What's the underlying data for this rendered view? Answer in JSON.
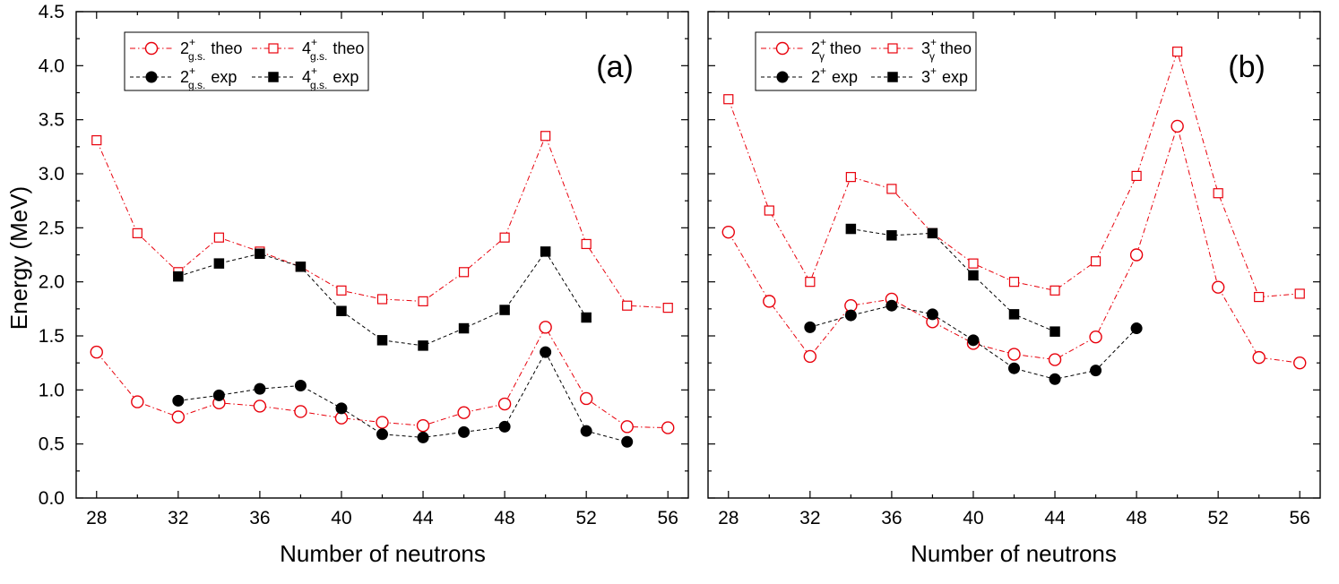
{
  "figure": {
    "ylabel": "Energy (MeV)",
    "xlabel": "Number of neutrons"
  },
  "chart_data": [
    {
      "type": "line",
      "panel_label": "(a)",
      "xlabel": "Number of neutrons",
      "ylabel": "Energy (MeV)",
      "xlim": [
        27,
        57
      ],
      "ylim": [
        0,
        4.5
      ],
      "xticks": [
        28,
        32,
        36,
        40,
        44,
        48,
        52,
        56
      ],
      "yticks": [
        0.0,
        0.5,
        1.0,
        1.5,
        2.0,
        2.5,
        3.0,
        3.5,
        4.0,
        4.5
      ],
      "ytick_labels": [
        "0.0",
        "0.5",
        "1.0",
        "1.5",
        "2.0",
        "2.5",
        "3.0",
        "3.5",
        "4.0",
        "4.5"
      ],
      "legend_position": "top-left",
      "series": [
        {
          "name": "2+g.s. theo",
          "legend": {
            "main": "2",
            "sup": "+",
            "sub": "g.s.",
            "tail": "theo"
          },
          "color": "#e8000b",
          "marker": "circle-open",
          "line": "dash-dot",
          "x": [
            28,
            30,
            32,
            34,
            36,
            38,
            40,
            42,
            44,
            46,
            48,
            50,
            52,
            54,
            56
          ],
          "y": [
            1.35,
            0.89,
            0.75,
            0.88,
            0.85,
            0.8,
            0.74,
            0.7,
            0.67,
            0.79,
            0.87,
            1.58,
            0.92,
            0.66,
            0.65
          ]
        },
        {
          "name": "4+g.s. theo",
          "legend": {
            "main": "4",
            "sup": "+",
            "sub": "g.s.",
            "tail": "theo"
          },
          "color": "#e8000b",
          "marker": "square-open",
          "line": "dash-dot",
          "x": [
            28,
            30,
            32,
            34,
            36,
            38,
            40,
            42,
            44,
            46,
            48,
            50,
            52,
            54,
            56
          ],
          "y": [
            3.31,
            2.45,
            2.09,
            2.41,
            2.28,
            2.14,
            1.92,
            1.84,
            1.82,
            2.09,
            2.41,
            3.35,
            2.35,
            1.78,
            1.76
          ]
        },
        {
          "name": "2+g.s. exp",
          "legend": {
            "main": "2",
            "sup": "+",
            "sub": "g.s.",
            "tail": "exp"
          },
          "color": "#000000",
          "marker": "circle-filled",
          "line": "dash",
          "x": [
            32,
            34,
            36,
            38,
            40,
            42,
            44,
            46,
            48,
            50,
            52,
            54
          ],
          "y": [
            0.9,
            0.95,
            1.01,
            1.04,
            0.83,
            0.59,
            0.56,
            0.61,
            0.66,
            1.35,
            0.62,
            0.52
          ]
        },
        {
          "name": "4+g.s. exp",
          "legend": {
            "main": "4",
            "sup": "+",
            "sub": "g.s.",
            "tail": "exp"
          },
          "color": "#000000",
          "marker": "square-filled",
          "line": "dash",
          "x": [
            32,
            34,
            36,
            38,
            40,
            42,
            44,
            46,
            48,
            50,
            52
          ],
          "y": [
            2.05,
            2.17,
            2.26,
            2.14,
            1.73,
            1.46,
            1.41,
            1.57,
            1.74,
            2.28,
            1.67
          ]
        }
      ]
    },
    {
      "type": "line",
      "panel_label": "(b)",
      "xlabel": "Number of neutrons",
      "ylabel": "",
      "xlim": [
        27,
        57
      ],
      "ylim": [
        0,
        4.5
      ],
      "xticks": [
        28,
        32,
        36,
        40,
        44,
        48,
        52,
        56
      ],
      "yticks": [
        0.0,
        0.5,
        1.0,
        1.5,
        2.0,
        2.5,
        3.0,
        3.5,
        4.0,
        4.5
      ],
      "ytick_labels": [],
      "legend_position": "top-left",
      "series": [
        {
          "name": "2+γ theo",
          "legend": {
            "main": "2",
            "sup": "+",
            "sub": "γ",
            "tail": "theo"
          },
          "color": "#e8000b",
          "marker": "circle-open",
          "line": "dash-dot",
          "x": [
            28,
            30,
            32,
            34,
            36,
            38,
            40,
            42,
            44,
            46,
            48,
            50,
            52,
            54,
            56
          ],
          "y": [
            2.46,
            1.82,
            1.31,
            1.78,
            1.84,
            1.63,
            1.43,
            1.33,
            1.28,
            1.49,
            2.25,
            3.44,
            1.95,
            1.3,
            1.25
          ]
        },
        {
          "name": "3+γ theo",
          "legend": {
            "main": "3",
            "sup": "+",
            "sub": "γ",
            "tail": "theo"
          },
          "color": "#e8000b",
          "marker": "square-open",
          "line": "dash-dot",
          "x": [
            28,
            30,
            32,
            34,
            36,
            38,
            40,
            42,
            44,
            46,
            48,
            50,
            52,
            54,
            56
          ],
          "y": [
            3.69,
            2.66,
            2.0,
            2.97,
            2.86,
            2.45,
            2.17,
            2.0,
            1.92,
            2.19,
            2.98,
            4.13,
            2.82,
            1.86,
            1.89
          ]
        },
        {
          "name": "2+ exp",
          "legend": {
            "main": "2",
            "sup": "+",
            "sub": "",
            "tail": "exp"
          },
          "color": "#000000",
          "marker": "circle-filled",
          "line": "dash",
          "x": [
            32,
            34,
            36,
            38,
            40,
            42,
            44,
            46,
            48
          ],
          "y": [
            1.58,
            1.69,
            1.78,
            1.7,
            1.46,
            1.2,
            1.1,
            1.18,
            1.57
          ]
        },
        {
          "name": "3+ exp",
          "legend": {
            "main": "3",
            "sup": "+",
            "sub": "",
            "tail": "exp"
          },
          "color": "#000000",
          "marker": "square-filled",
          "line": "dash",
          "x": [
            34,
            36,
            38,
            40,
            42,
            44
          ],
          "y": [
            2.49,
            2.43,
            2.45,
            2.06,
            1.7,
            1.54
          ]
        }
      ]
    }
  ]
}
